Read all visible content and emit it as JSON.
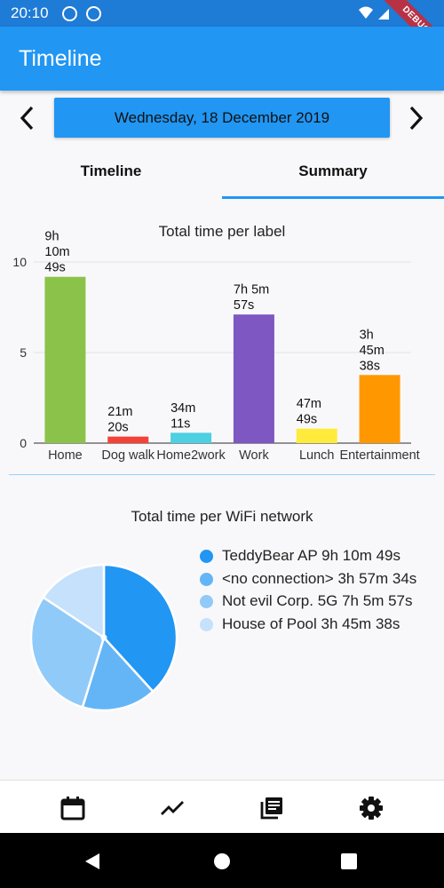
{
  "status_bar": {
    "time": "20:10",
    "debug_label": "DEBUG"
  },
  "app_bar": {
    "title": "Timeline"
  },
  "date_nav": {
    "date": "Wednesday, 18 December 2019",
    "prev_icon": "chevron-left-icon",
    "next_icon": "chevron-right-icon"
  },
  "tabs": [
    {
      "label": "Timeline",
      "selected": false
    },
    {
      "label": "Summary",
      "selected": true
    }
  ],
  "chart_data": [
    {
      "type": "bar",
      "title": "Total time per label",
      "categories": [
        "Home",
        "Dog walk",
        "Home2work",
        "Work",
        "Lunch",
        "Entertainment"
      ],
      "values": [
        9.18,
        0.36,
        0.57,
        7.1,
        0.8,
        3.76
      ],
      "value_labels": [
        "9h\n10m\n49s",
        "21m\n20s",
        "34m\n11s",
        "7h 5m\n57s",
        "47m\n49s",
        "3h\n45m\n38s"
      ],
      "colors": [
        "#8bc34a",
        "#f44336",
        "#4dd0e1",
        "#7e57c2",
        "#ffeb3b",
        "#ff9800"
      ],
      "y_ticks": [
        "0",
        "5",
        "10"
      ],
      "ylim": [
        0,
        10
      ]
    },
    {
      "type": "pie",
      "title": "Total time per WiFi network",
      "labels": [
        "TeddyBear AP",
        "<no connection>",
        "Not evil Corp. 5G",
        "House of Pool"
      ],
      "values": [
        9.18,
        3.96,
        7.1,
        3.76
      ],
      "value_labels": [
        "9h 10m 49s",
        "3h 57m 34s",
        "7h 5m 57s",
        "3h 45m 38s"
      ],
      "colors": [
        "#2196f3",
        "#64b5f6",
        "#90caf9",
        "#c5e1fb"
      ]
    }
  ],
  "bottom_nav": [
    {
      "icon": "calendar-icon"
    },
    {
      "icon": "trending-icon"
    },
    {
      "icon": "library-icon"
    },
    {
      "icon": "settings-icon"
    }
  ],
  "system_nav": [
    {
      "icon": "back-icon"
    },
    {
      "icon": "home-icon"
    },
    {
      "icon": "recents-icon"
    }
  ]
}
